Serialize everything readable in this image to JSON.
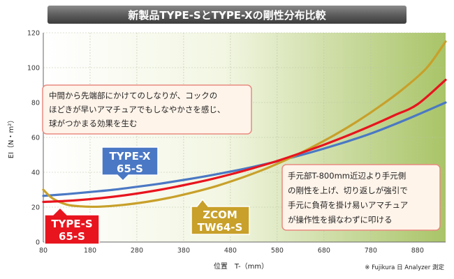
{
  "chart_data": {
    "type": "line",
    "title": "新製品TYPE-SとTYPE-Xの剛性分布比較",
    "xlabel": "位置　T-（mm）",
    "ylabel": "EI（N・m²）",
    "xlim": [
      80,
      940
    ],
    "ylim": [
      0,
      120
    ],
    "xticks": [
      80,
      180,
      280,
      380,
      480,
      580,
      680,
      780,
      880
    ],
    "yticks": [
      0,
      20,
      40,
      60,
      80,
      100,
      120
    ],
    "grid": true,
    "note": "※ Fujikura 日 Analyzer 測定",
    "series": [
      {
        "name": "TYPE-X 65-S",
        "color": "#4a78c4",
        "badge": [
          "TYPE-X",
          "65-S"
        ],
        "x": [
          80,
          130,
          180,
          230,
          280,
          330,
          380,
          430,
          480,
          530,
          580,
          630,
          680,
          730,
          780,
          830,
          880,
          940
        ],
        "values": [
          26.5,
          27.5,
          28.7,
          30.0,
          31.7,
          33.5,
          35.6,
          37.9,
          40.4,
          43.2,
          46.3,
          49.8,
          53.6,
          57.7,
          62.2,
          67.4,
          73.0,
          80.0
        ]
      },
      {
        "name": "TYPE-S 65-S",
        "color": "#e8141e",
        "badge": [
          "TYPE-S",
          "65-S"
        ],
        "x": [
          80,
          130,
          180,
          230,
          280,
          330,
          380,
          430,
          480,
          530,
          580,
          630,
          680,
          730,
          780,
          830,
          880,
          940
        ],
        "values": [
          23.0,
          23.6,
          24.6,
          26.0,
          27.8,
          30.0,
          32.6,
          35.5,
          38.8,
          42.5,
          46.5,
          51.0,
          55.8,
          61.0,
          66.6,
          72.6,
          79.0,
          93.0
        ]
      },
      {
        "name": "ZCOM TW64-S",
        "color": "#c8a02a",
        "badge": [
          "ZCOM",
          "TW64-S"
        ],
        "x": [
          80,
          100,
          130,
          160,
          200,
          250,
          300,
          350,
          400,
          450,
          500,
          550,
          600,
          650,
          700,
          750,
          800,
          850,
          900,
          940
        ],
        "values": [
          30.0,
          25.0,
          21.5,
          20.5,
          20.3,
          21.3,
          23.0,
          25.4,
          28.5,
          32.1,
          36.5,
          41.5,
          47.3,
          53.8,
          61.0,
          69.0,
          78.0,
          88.0,
          100.0,
          115.0
        ]
      }
    ],
    "annotations": [
      {
        "lines": [
          "中間から先端部にかけてのしなりが、コックの",
          "ほどきが早いアマチュアでもしなやかさを感じ、",
          "球がつかまる効果を生む"
        ]
      },
      {
        "lines": [
          "手元部T-800mm近辺より手元側",
          "の剛性を上げ、切り返しが強引で",
          "手元に負荷を掛け易いアマチュア",
          "が操作性を損なわずに叩ける"
        ]
      }
    ]
  }
}
